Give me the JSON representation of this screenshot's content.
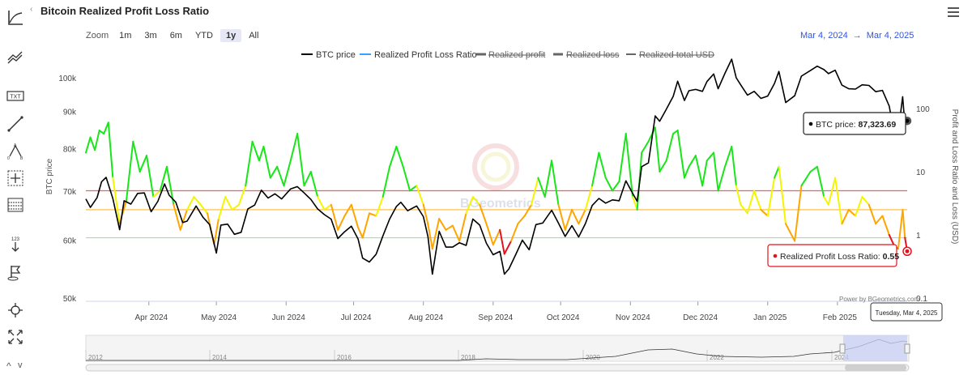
{
  "page": {
    "title": "Bitcoin Realized Profit Loss Ratio",
    "collapse_glyph": "‹",
    "nav_up": "^",
    "nav_down": "v"
  },
  "toolbar": {
    "icons": [
      "axis-line-icon",
      "trend-lines-icon",
      "text-annotation-icon",
      "line-draw-icon",
      "fibonacci-icon",
      "crosshair-box-icon",
      "grid-table-icon",
      "measure-arrow-icon",
      "flag-icon",
      "zoom-crosshair-icon",
      "fullscreen-icon"
    ],
    "measure_text": "123"
  },
  "zoom": {
    "label": "Zoom",
    "buttons": [
      "1m",
      "3m",
      "6m",
      "YTD",
      "1y",
      "All"
    ],
    "selected": "1y"
  },
  "range": {
    "from": "Mar 4, 2024",
    "arrow": "→",
    "to": "Mar 4, 2025"
  },
  "colors": {
    "btc": "#000000",
    "ratio_legend": "#3aa0ff",
    "green": "#19e619",
    "yellow": "#f5f500",
    "orange": "#ffa500",
    "red": "#e6111e",
    "red_line": "#ff5a5a",
    "orange_line": "#ffb833",
    "green_line": "#9fe39f",
    "navigator_fill": "#c8d0f5"
  },
  "tooltips": {
    "btc_label": "BTC price:",
    "btc_value": "87,323.69",
    "ratio_label": "Realized Profit Loss Ratio:",
    "ratio_value": "0.55",
    "date": "Tuesday, Mar 4, 2025"
  },
  "watermark": "BGeometrics",
  "credit": "Power by BGeometrics.com",
  "chart_data": {
    "type": "line",
    "legend": [
      "BTC price",
      "Realized Profit Loss Ratio",
      "Realized profit",
      "Realized loss",
      "Realized total USD"
    ],
    "legend_placement": "top-center",
    "x_range": [
      "2024-03-04",
      "2025-03-04"
    ],
    "x_ticks": [
      "Apr 2024",
      "May 2024",
      "Jun 2024",
      "Jul 2024",
      "Aug 2024",
      "Sep 2024",
      "Oct 2024",
      "Nov 2024",
      "Dec 2024",
      "Jan 2025",
      "Feb 2025"
    ],
    "y_left": {
      "label": "BTC price",
      "scale": "log",
      "ticks": [
        "50k",
        "60k",
        "70k",
        "80k",
        "90k",
        "100k"
      ],
      "range": [
        50000,
        106000
      ]
    },
    "y_right": {
      "label": "Profit and Loss Ratio and Loss (USD)",
      "scale": "log",
      "ticks": [
        "0.1",
        "1",
        "10",
        "100"
      ],
      "range": [
        0.1,
        400
      ]
    },
    "reference_lines": [
      5,
      2.5,
      0.9
    ],
    "btc_price": [
      [
        "2024-03-04",
        68300
      ],
      [
        "2024-03-06",
        66500
      ],
      [
        "2024-03-09",
        68600
      ],
      [
        "2024-03-11",
        72100
      ],
      [
        "2024-03-13",
        73100
      ],
      [
        "2024-03-16",
        68400
      ],
      [
        "2024-03-19",
        62000
      ],
      [
        "2024-03-21",
        67900
      ],
      [
        "2024-03-24",
        67200
      ],
      [
        "2024-03-27",
        69500
      ],
      [
        "2024-03-30",
        69600
      ],
      [
        "2024-04-02",
        65600
      ],
      [
        "2024-04-05",
        67800
      ],
      [
        "2024-04-08",
        71600
      ],
      [
        "2024-04-10",
        69100
      ],
      [
        "2024-04-13",
        67600
      ],
      [
        "2024-04-16",
        63400
      ],
      [
        "2024-04-18",
        63700
      ],
      [
        "2024-04-22",
        66800
      ],
      [
        "2024-04-25",
        64500
      ],
      [
        "2024-04-28",
        63000
      ],
      [
        "2024-05-01",
        57600
      ],
      [
        "2024-05-03",
        62900
      ],
      [
        "2024-05-06",
        63100
      ],
      [
        "2024-05-09",
        61100
      ],
      [
        "2024-05-12",
        61500
      ],
      [
        "2024-05-15",
        66200
      ],
      [
        "2024-05-18",
        67000
      ],
      [
        "2024-05-21",
        70200
      ],
      [
        "2024-05-24",
        68500
      ],
      [
        "2024-05-27",
        69400
      ],
      [
        "2024-05-30",
        68300
      ],
      [
        "2024-06-03",
        70500
      ],
      [
        "2024-06-06",
        71000
      ],
      [
        "2024-06-09",
        69600
      ],
      [
        "2024-06-12",
        68200
      ],
      [
        "2024-06-15",
        66200
      ],
      [
        "2024-06-18",
        65000
      ],
      [
        "2024-06-21",
        64100
      ],
      [
        "2024-06-24",
        60300
      ],
      [
        "2024-06-27",
        61600
      ],
      [
        "2024-06-30",
        62700
      ],
      [
        "2024-07-03",
        60200
      ],
      [
        "2024-07-05",
        56700
      ],
      [
        "2024-07-08",
        56000
      ],
      [
        "2024-07-11",
        57400
      ],
      [
        "2024-07-14",
        60800
      ],
      [
        "2024-07-17",
        64100
      ],
      [
        "2024-07-20",
        66700
      ],
      [
        "2024-07-22",
        67600
      ],
      [
        "2024-07-25",
        65800
      ],
      [
        "2024-07-29",
        66800
      ],
      [
        "2024-08-01",
        64600
      ],
      [
        "2024-08-03",
        60700
      ],
      [
        "2024-08-05",
        53900
      ],
      [
        "2024-08-08",
        61700
      ],
      [
        "2024-08-11",
        58700
      ],
      [
        "2024-08-14",
        58700
      ],
      [
        "2024-08-17",
        59500
      ],
      [
        "2024-08-20",
        59000
      ],
      [
        "2024-08-23",
        64100
      ],
      [
        "2024-08-26",
        62900
      ],
      [
        "2024-08-29",
        59400
      ],
      [
        "2024-09-01",
        57300
      ],
      [
        "2024-09-04",
        57900
      ],
      [
        "2024-09-06",
        53900
      ],
      [
        "2024-09-08",
        54800
      ],
      [
        "2024-09-11",
        57300
      ],
      [
        "2024-09-14",
        60000
      ],
      [
        "2024-09-17",
        58200
      ],
      [
        "2024-09-20",
        63000
      ],
      [
        "2024-09-23",
        63300
      ],
      [
        "2024-09-27",
        65900
      ],
      [
        "2024-09-30",
        63300
      ],
      [
        "2024-10-03",
        60700
      ],
      [
        "2024-10-06",
        62800
      ],
      [
        "2024-10-09",
        60600
      ],
      [
        "2024-10-12",
        63200
      ],
      [
        "2024-10-15",
        66900
      ],
      [
        "2024-10-18",
        68400
      ],
      [
        "2024-10-21",
        67400
      ],
      [
        "2024-10-24",
        68100
      ],
      [
        "2024-10-27",
        67900
      ],
      [
        "2024-10-30",
        72300
      ],
      [
        "2024-11-02",
        69500
      ],
      [
        "2024-11-04",
        67800
      ],
      [
        "2024-11-06",
        75600
      ],
      [
        "2024-11-09",
        76500
      ],
      [
        "2024-11-12",
        88700
      ],
      [
        "2024-11-14",
        87200
      ],
      [
        "2024-11-17",
        90600
      ],
      [
        "2024-11-20",
        94300
      ],
      [
        "2024-11-22",
        98900
      ],
      [
        "2024-11-25",
        93100
      ],
      [
        "2024-11-27",
        96000
      ],
      [
        "2024-11-30",
        96400
      ],
      [
        "2024-12-03",
        95800
      ],
      [
        "2024-12-05",
        98800
      ],
      [
        "2024-12-08",
        101200
      ],
      [
        "2024-12-10",
        96600
      ],
      [
        "2024-12-13",
        101400
      ],
      [
        "2024-12-16",
        106000
      ],
      [
        "2024-12-18",
        100000
      ],
      [
        "2024-12-20",
        97800
      ],
      [
        "2024-12-23",
        94700
      ],
      [
        "2024-12-26",
        95800
      ],
      [
        "2024-12-29",
        93700
      ],
      [
        "2025-01-01",
        94400
      ],
      [
        "2025-01-04",
        98200
      ],
      [
        "2025-01-06",
        102000
      ],
      [
        "2025-01-09",
        92500
      ],
      [
        "2025-01-13",
        94500
      ],
      [
        "2025-01-16",
        100500
      ],
      [
        "2025-01-20",
        102300
      ],
      [
        "2025-01-23",
        103700
      ],
      [
        "2025-01-26",
        102600
      ],
      [
        "2025-01-28",
        101300
      ],
      [
        "2025-01-31",
        102400
      ],
      [
        "2025-02-03",
        97700
      ],
      [
        "2025-02-06",
        96600
      ],
      [
        "2025-02-09",
        96500
      ],
      [
        "2025-02-12",
        97800
      ],
      [
        "2025-02-15",
        97600
      ],
      [
        "2025-02-18",
        95700
      ],
      [
        "2025-02-21",
        96100
      ],
      [
        "2025-02-24",
        91500
      ],
      [
        "2025-02-26",
        84700
      ],
      [
        "2025-02-28",
        84300
      ],
      [
        "2025-03-02",
        94200
      ],
      [
        "2025-03-03",
        86100
      ],
      [
        "2025-03-04",
        87323.69
      ]
    ],
    "ratio": [
      [
        "2024-03-04",
        20
      ],
      [
        "2024-03-06",
        35
      ],
      [
        "2024-03-08",
        22
      ],
      [
        "2024-03-10",
        45
      ],
      [
        "2024-03-12",
        40
      ],
      [
        "2024-03-14",
        60
      ],
      [
        "2024-03-16",
        8
      ],
      [
        "2024-03-19",
        1.5
      ],
      [
        "2024-03-22",
        3.5
      ],
      [
        "2024-03-25",
        30
      ],
      [
        "2024-03-28",
        10
      ],
      [
        "2024-03-31",
        18
      ],
      [
        "2024-04-03",
        4
      ],
      [
        "2024-04-06",
        5
      ],
      [
        "2024-04-09",
        12
      ],
      [
        "2024-04-12",
        3
      ],
      [
        "2024-04-15",
        1.2
      ],
      [
        "2024-04-18",
        2.5
      ],
      [
        "2024-04-21",
        4
      ],
      [
        "2024-04-24",
        3
      ],
      [
        "2024-04-27",
        2.2
      ],
      [
        "2024-04-30",
        0.7
      ],
      [
        "2024-05-02",
        1.8
      ],
      [
        "2024-05-05",
        4
      ],
      [
        "2024-05-08",
        2.5
      ],
      [
        "2024-05-11",
        3
      ],
      [
        "2024-05-14",
        6
      ],
      [
        "2024-05-17",
        30
      ],
      [
        "2024-05-20",
        15
      ],
      [
        "2024-05-22",
        25
      ],
      [
        "2024-05-25",
        8
      ],
      [
        "2024-05-28",
        12
      ],
      [
        "2024-05-31",
        6
      ],
      [
        "2024-06-03",
        15
      ],
      [
        "2024-06-06",
        40
      ],
      [
        "2024-06-09",
        6
      ],
      [
        "2024-06-12",
        10
      ],
      [
        "2024-06-15",
        4
      ],
      [
        "2024-06-18",
        2.5
      ],
      [
        "2024-06-21",
        3
      ],
      [
        "2024-06-24",
        1.2
      ],
      [
        "2024-06-27",
        2
      ],
      [
        "2024-06-30",
        3
      ],
      [
        "2024-07-03",
        1.3
      ],
      [
        "2024-07-05",
        0.9
      ],
      [
        "2024-07-08",
        2.2
      ],
      [
        "2024-07-11",
        2
      ],
      [
        "2024-07-14",
        4
      ],
      [
        "2024-07-17",
        12
      ],
      [
        "2024-07-20",
        25
      ],
      [
        "2024-07-23",
        12
      ],
      [
        "2024-07-26",
        5
      ],
      [
        "2024-07-29",
        6
      ],
      [
        "2024-08-01",
        3
      ],
      [
        "2024-08-03",
        1.5
      ],
      [
        "2024-08-05",
        0.6
      ],
      [
        "2024-08-08",
        1.8
      ],
      [
        "2024-08-11",
        1.2
      ],
      [
        "2024-08-14",
        1.4
      ],
      [
        "2024-08-17",
        0.8
      ],
      [
        "2024-08-20",
        2.2
      ],
      [
        "2024-08-23",
        4
      ],
      [
        "2024-08-26",
        3
      ],
      [
        "2024-08-29",
        1.5
      ],
      [
        "2024-09-01",
        0.7
      ],
      [
        "2024-09-04",
        1.2
      ],
      [
        "2024-09-06",
        0.5
      ],
      [
        "2024-09-09",
        0.8
      ],
      [
        "2024-09-12",
        1.5
      ],
      [
        "2024-09-15",
        2
      ],
      [
        "2024-09-18",
        3
      ],
      [
        "2024-09-21",
        8
      ],
      [
        "2024-09-24",
        4
      ],
      [
        "2024-09-27",
        15
      ],
      [
        "2024-09-30",
        3
      ],
      [
        "2024-10-03",
        1.2
      ],
      [
        "2024-10-06",
        2.5
      ],
      [
        "2024-10-09",
        1.5
      ],
      [
        "2024-10-12",
        2.5
      ],
      [
        "2024-10-15",
        6
      ],
      [
        "2024-10-18",
        20
      ],
      [
        "2024-10-21",
        8
      ],
      [
        "2024-10-24",
        5
      ],
      [
        "2024-10-27",
        7
      ],
      [
        "2024-10-30",
        40
      ],
      [
        "2024-11-02",
        4
      ],
      [
        "2024-11-04",
        2.5
      ],
      [
        "2024-11-06",
        20
      ],
      [
        "2024-11-09",
        30
      ],
      [
        "2024-11-12",
        50
      ],
      [
        "2024-11-14",
        10
      ],
      [
        "2024-11-17",
        15
      ],
      [
        "2024-11-20",
        40
      ],
      [
        "2024-11-22",
        45
      ],
      [
        "2024-11-25",
        8
      ],
      [
        "2024-11-27",
        12
      ],
      [
        "2024-11-30",
        18
      ],
      [
        "2024-12-03",
        6
      ],
      [
        "2024-12-05",
        15
      ],
      [
        "2024-12-08",
        20
      ],
      [
        "2024-12-10",
        5
      ],
      [
        "2024-12-13",
        12
      ],
      [
        "2024-12-16",
        25
      ],
      [
        "2024-12-18",
        6
      ],
      [
        "2024-12-20",
        3
      ],
      [
        "2024-12-23",
        2.2
      ],
      [
        "2024-12-26",
        5
      ],
      [
        "2024-12-29",
        2.5
      ],
      [
        "2025-01-01",
        2
      ],
      [
        "2025-01-04",
        8
      ],
      [
        "2025-01-06",
        12
      ],
      [
        "2025-01-09",
        1.5
      ],
      [
        "2025-01-13",
        0.8
      ],
      [
        "2025-01-16",
        6
      ],
      [
        "2025-01-20",
        10
      ],
      [
        "2025-01-23",
        12
      ],
      [
        "2025-01-26",
        4
      ],
      [
        "2025-01-28",
        3
      ],
      [
        "2025-01-31",
        8
      ],
      [
        "2025-02-03",
        1.5
      ],
      [
        "2025-02-06",
        2.5
      ],
      [
        "2025-02-09",
        2
      ],
      [
        "2025-02-12",
        4
      ],
      [
        "2025-02-15",
        3
      ],
      [
        "2025-02-18",
        1.5
      ],
      [
        "2025-02-21",
        2
      ],
      [
        "2025-02-24",
        1
      ],
      [
        "2025-02-26",
        0.7
      ],
      [
        "2025-02-28",
        0.6
      ],
      [
        "2025-03-02",
        2.5
      ],
      [
        "2025-03-03",
        0.9
      ],
      [
        "2025-03-04",
        0.55
      ]
    ],
    "navigator_years": [
      "2012",
      "2014",
      "2016",
      "2018",
      "2020",
      "2022",
      "2024"
    ]
  }
}
